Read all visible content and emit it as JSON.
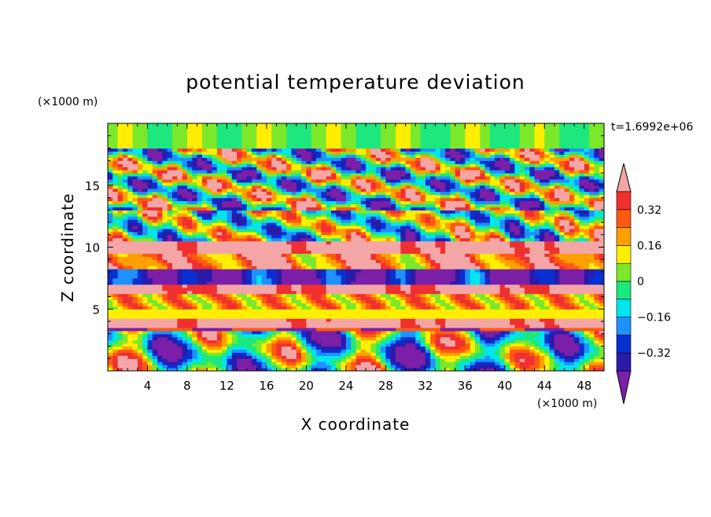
{
  "chart_data": {
    "type": "heatmap",
    "title": "potential temperature deviation",
    "xlabel": "X coordinate",
    "ylabel": "Z coordinate",
    "x_unit_label": "(×1000 m)",
    "y_unit_label": "(×1000 m)",
    "time_label": "t=1.6992e+06",
    "xlim": [
      0,
      50
    ],
    "ylim": [
      0,
      20
    ],
    "x_ticks": [
      4,
      8,
      12,
      16,
      20,
      24,
      28,
      32,
      36,
      40,
      44,
      48
    ],
    "y_ticks": [
      5,
      10,
      15
    ],
    "x_tick_labels": [
      "4",
      "8",
      "12",
      "16",
      "20",
      "24",
      "28",
      "32",
      "36",
      "40",
      "44",
      "48"
    ],
    "y_tick_labels": [
      "5",
      "10",
      "15"
    ],
    "colorbar": {
      "levels": [
        -0.4,
        -0.32,
        -0.24,
        -0.16,
        -0.08,
        0,
        0.08,
        0.16,
        0.24,
        0.32,
        0.4
      ],
      "tick_values": [
        0.32,
        0.16,
        0,
        -0.16,
        -0.32
      ],
      "tick_labels": [
        "0.32",
        "0.16",
        "0",
        "−0.16",
        "−0.32"
      ],
      "colors": [
        "#7b1fa8",
        "#2b1aa8",
        "#0a2fd0",
        "#1e90ff",
        "#00e5ee",
        "#1de87e",
        "#7ce82a",
        "#ffee00",
        "#ffa000",
        "#ff5a10",
        "#f03030",
        "#f4a6a6"
      ],
      "extend": "both"
    },
    "grid": false
  }
}
